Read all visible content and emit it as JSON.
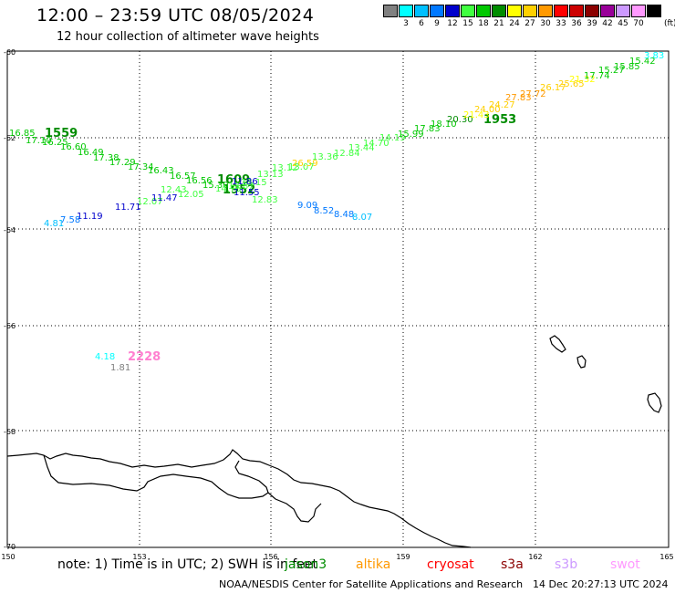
{
  "header": {
    "title": "12:00 – 23:59 UTC 08/05/2024",
    "subtitle": "12 hour collection of altimeter wave heights"
  },
  "legend": {
    "unit": "(ft)",
    "items": [
      {
        "label": "",
        "color": "#808080"
      },
      {
        "label": "3",
        "color": "#00ffff"
      },
      {
        "label": "6",
        "color": "#00c0ff"
      },
      {
        "label": "9",
        "color": "#0078ff"
      },
      {
        "label": "12",
        "color": "#0000cc"
      },
      {
        "label": "15",
        "color": "#40ff40"
      },
      {
        "label": "18",
        "color": "#00c800"
      },
      {
        "label": "21",
        "color": "#008c00"
      },
      {
        "label": "24",
        "color": "#ffff00"
      },
      {
        "label": "27",
        "color": "#ffd000"
      },
      {
        "label": "30",
        "color": "#ff9900"
      },
      {
        "label": "33",
        "color": "#ff0000"
      },
      {
        "label": "36",
        "color": "#cc0000"
      },
      {
        "label": "39",
        "color": "#8b0000"
      },
      {
        "label": "42",
        "color": "#990099"
      },
      {
        "label": "45",
        "color": "#cc99ff"
      },
      {
        "label": "70",
        "color": "#ff99ff"
      },
      {
        "label": "",
        "color": "#000000"
      }
    ]
  },
  "map": {
    "lat_ticks": [
      "-60",
      "-62",
      "-64",
      "-66",
      "-68",
      "-70"
    ],
    "lon_ticks": [
      "150",
      "153",
      "156",
      "159",
      "162",
      "165"
    ]
  },
  "track_labels": [
    {
      "text": "1559",
      "color": "#008c00",
      "kind": "time"
    },
    {
      "text": "1609",
      "color": "#008c00",
      "kind": "time"
    },
    {
      "text": "1952",
      "color": "#008c00",
      "kind": "time"
    },
    {
      "text": "1953",
      "color": "#008c00",
      "kind": "time"
    },
    {
      "text": "2228",
      "color": "#ff80d0",
      "kind": "time"
    },
    {
      "text": "16.85",
      "color": "#00c800"
    },
    {
      "text": "17.10",
      "color": "#00c800"
    },
    {
      "text": "16.25",
      "color": "#00c800"
    },
    {
      "text": "16.60",
      "color": "#00c800"
    },
    {
      "text": "16.49",
      "color": "#00c800"
    },
    {
      "text": "17.38",
      "color": "#00c800"
    },
    {
      "text": "17.29",
      "color": "#00c800"
    },
    {
      "text": "17.34",
      "color": "#00c800"
    },
    {
      "text": "16.43",
      "color": "#00c800"
    },
    {
      "text": "16.57",
      "color": "#00c800"
    },
    {
      "text": "16.56",
      "color": "#00c800"
    },
    {
      "text": "15.30",
      "color": "#00c800"
    },
    {
      "text": "14.75",
      "color": "#40ff40"
    },
    {
      "text": "13.87",
      "color": "#40ff40"
    },
    {
      "text": "13.15",
      "color": "#40ff40"
    },
    {
      "text": "12.05",
      "color": "#40ff40"
    },
    {
      "text": "12.43",
      "color": "#40ff40"
    },
    {
      "text": "12.07",
      "color": "#40ff40"
    },
    {
      "text": "11.71",
      "color": "#0000cc"
    },
    {
      "text": "11.47",
      "color": "#0000cc"
    },
    {
      "text": "11.19",
      "color": "#0000cc"
    },
    {
      "text": "7.58",
      "color": "#0078ff"
    },
    {
      "text": "4.81",
      "color": "#00c0ff"
    },
    {
      "text": "11.86",
      "color": "#0000cc"
    },
    {
      "text": "11.55",
      "color": "#0000cc"
    },
    {
      "text": "12.83",
      "color": "#40ff40"
    },
    {
      "text": "9.09",
      "color": "#0078ff"
    },
    {
      "text": "8.52",
      "color": "#0078ff"
    },
    {
      "text": "8.48",
      "color": "#0078ff"
    },
    {
      "text": "8.07",
      "color": "#00c0ff"
    },
    {
      "text": "13.13",
      "color": "#40ff40"
    },
    {
      "text": "13.12",
      "color": "#40ff40"
    },
    {
      "text": "13.07",
      "color": "#40ff40"
    },
    {
      "text": "26.59",
      "color": "#ffd000"
    },
    {
      "text": "13.36",
      "color": "#40ff40"
    },
    {
      "text": "12.84",
      "color": "#40ff40"
    },
    {
      "text": "13.44",
      "color": "#40ff40"
    },
    {
      "text": "14.70",
      "color": "#40ff40"
    },
    {
      "text": "14.19",
      "color": "#40ff40"
    },
    {
      "text": "15.99",
      "color": "#00c800"
    },
    {
      "text": "17.83",
      "color": "#00c800"
    },
    {
      "text": "18.10",
      "color": "#00c800"
    },
    {
      "text": "20.30",
      "color": "#008c00"
    },
    {
      "text": "21.43",
      "color": "#ffff00"
    },
    {
      "text": "24.00",
      "color": "#ffd000"
    },
    {
      "text": "24.27",
      "color": "#ffd000"
    },
    {
      "text": "27.83",
      "color": "#ff9900"
    },
    {
      "text": "27.72",
      "color": "#ff9900"
    },
    {
      "text": "26.17",
      "color": "#ffd000"
    },
    {
      "text": "25.65",
      "color": "#ffd000"
    },
    {
      "text": "21.32",
      "color": "#ffff00"
    },
    {
      "text": "17.74",
      "color": "#00c800"
    },
    {
      "text": "15.27",
      "color": "#00c800"
    },
    {
      "text": "15.85",
      "color": "#00c800"
    },
    {
      "text": "15.42",
      "color": "#00c800"
    },
    {
      "text": "3.83",
      "color": "#00ffff"
    },
    {
      "text": "4.18",
      "color": "#00ffff"
    },
    {
      "text": "1.81",
      "color": "#808080"
    }
  ],
  "footer": {
    "note": "note: 1) Time is in UTC; 2) SWH is in feet",
    "satellites": [
      {
        "name": "jason3",
        "color": "#008c00"
      },
      {
        "name": "altika",
        "color": "#ff9900"
      },
      {
        "name": "cryosat",
        "color": "#ff0000"
      },
      {
        "name": "s3a",
        "color": "#8b0000"
      },
      {
        "name": "s3b",
        "color": "#cc99ff"
      },
      {
        "name": "swot",
        "color": "#ff99ff"
      }
    ],
    "credit": "NOAA/NESDIS Center for Satellite Applications and Research",
    "timestamp": "14 Dec 20:27:13 UTC 2024"
  }
}
